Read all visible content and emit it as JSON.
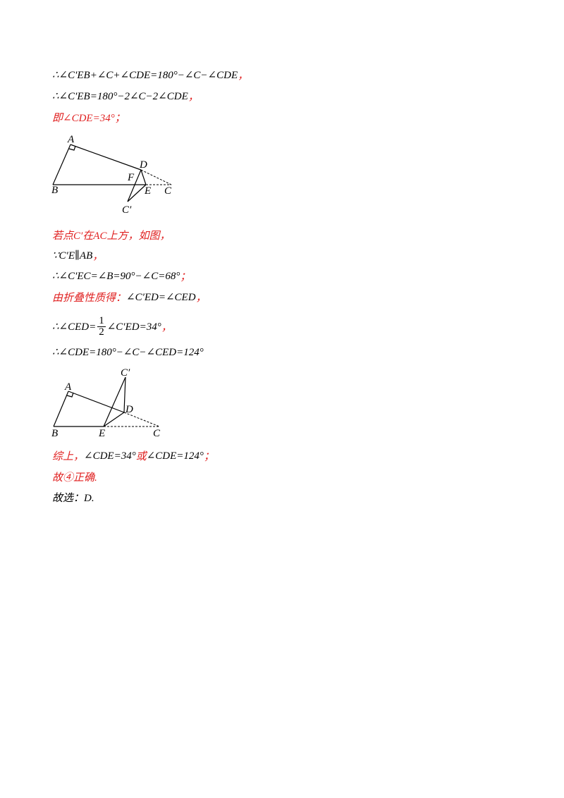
{
  "lines": [
    {
      "parts": [
        {
          "text": "∴∠C′EB+∠C+∠CDE=180°−∠C−∠CDE",
          "color": "#000000"
        },
        {
          "text": "，",
          "color": "#e02020"
        }
      ]
    },
    {
      "parts": [
        {
          "text": "∴∠C′EB=180°−2∠C−2∠CDE",
          "color": "#000000"
        },
        {
          "text": "，",
          "color": "#e02020"
        }
      ]
    },
    {
      "parts": [
        {
          "text": "即∠CDE=34°；",
          "color": "#e02020"
        }
      ]
    },
    {
      "parts": [
        {
          "text": "若点C′在AC上方，如图，",
          "color": "#e02020"
        }
      ]
    },
    {
      "parts": [
        {
          "text": "∵C′E∥AB",
          "color": "#000000"
        },
        {
          "text": "，",
          "color": "#e02020"
        }
      ]
    },
    {
      "parts": [
        {
          "text": "∴∠C′EC=∠B=90°−∠C=68°",
          "color": "#000000"
        },
        {
          "text": "；",
          "color": "#e02020"
        }
      ]
    },
    {
      "parts": [
        {
          "text": "由折叠性质得：",
          "color": "#e02020"
        },
        {
          "text": "∠C′ED=∠CED",
          "color": "#000000"
        },
        {
          "text": "，",
          "color": "#e02020"
        }
      ]
    },
    {
      "parts": [
        {
          "text": "∴∠CED=",
          "color": "#000000"
        },
        {
          "num": "1",
          "den": "2",
          "color": "#000000"
        },
        {
          "text": "∠C′ED=34°",
          "color": "#000000"
        },
        {
          "text": "，",
          "color": "#e02020"
        }
      ]
    },
    {
      "parts": [
        {
          "text": "∴∠CDE=180°−∠C−∠CED=124°",
          "color": "#000000"
        }
      ]
    },
    {
      "parts": [
        {
          "text": "综上，",
          "color": "#e02020"
        },
        {
          "text": "∠CDE=34°",
          "color": "#000000"
        },
        {
          "text": "或",
          "color": "#e02020"
        },
        {
          "text": "∠CDE=124°",
          "color": "#000000"
        },
        {
          "text": "；",
          "color": "#e02020"
        }
      ]
    },
    {
      "parts": [
        {
          "text": "故④正确.",
          "color": "#e02020"
        }
      ]
    },
    {
      "parts": [
        {
          "text": "故选：D.",
          "color": "#000000"
        }
      ]
    }
  ],
  "figures": [
    {
      "labels": [
        "A",
        "D",
        "F",
        "B",
        "E",
        "C",
        "C′"
      ]
    },
    {
      "labels": [
        "C′",
        "A",
        "D",
        "B",
        "E",
        "C"
      ]
    }
  ]
}
